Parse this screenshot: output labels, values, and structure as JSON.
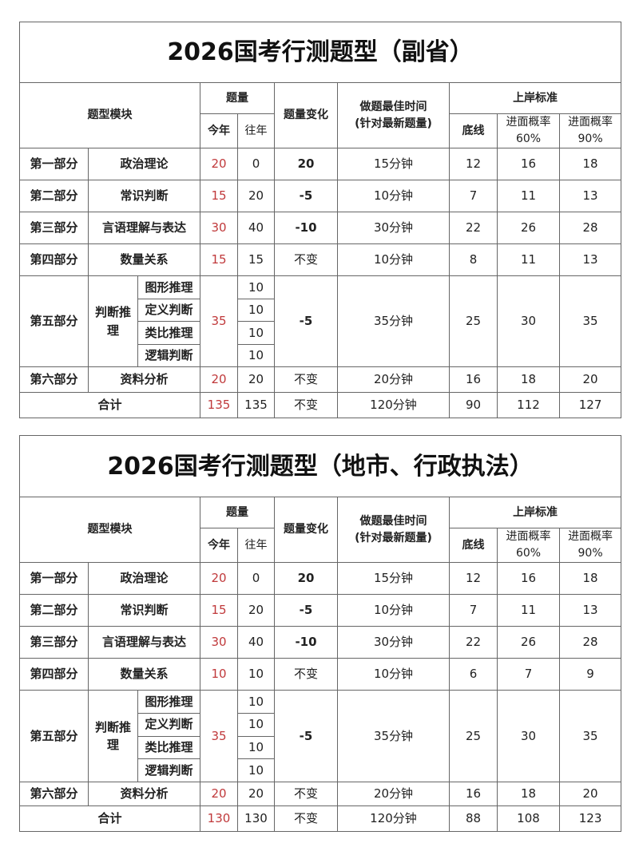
{
  "colors": {
    "highlight": "#c0393b",
    "border": "#666666"
  },
  "headers": {
    "module": "题型模块",
    "count": "题量",
    "this_year": "今年",
    "past_year": "往年",
    "change": "题量变化",
    "time_l1": "做题最佳时间",
    "time_l2": "(针对最新题量)",
    "standard": "上岸标准",
    "floor": "底线",
    "p60_l1": "进面概率",
    "p60_l2": "60%",
    "p90_l1": "进面概率",
    "p90_l2": "90%"
  },
  "tables": [
    {
      "title": "2026国考行测题型（副省）",
      "rows": [
        {
          "part": "第一部分",
          "name": "政治理论",
          "this_year": "20",
          "past_year": "0",
          "change": "20",
          "time": "15分钟",
          "floor": "12",
          "p60": "16",
          "p90": "18"
        },
        {
          "part": "第二部分",
          "name": "常识判断",
          "this_year": "15",
          "past_year": "20",
          "change": "-5",
          "time": "10分钟",
          "floor": "7",
          "p60": "11",
          "p90": "13"
        },
        {
          "part": "第三部分",
          "name": "言语理解与表达",
          "this_year": "30",
          "past_year": "40",
          "change": "-10",
          "time": "30分钟",
          "floor": "22",
          "p60": "26",
          "p90": "28"
        },
        {
          "part": "第四部分",
          "name": "数量关系",
          "this_year": "15",
          "past_year": "15",
          "change": "不变",
          "time": "10分钟",
          "floor": "8",
          "p60": "11",
          "p90": "13"
        }
      ],
      "fifth": {
        "part": "第五部分",
        "name": "判断推理",
        "subs": [
          {
            "name": "图形推理",
            "past_year": "10"
          },
          {
            "name": "定义判断",
            "past_year": "10"
          },
          {
            "name": "类比推理",
            "past_year": "10"
          },
          {
            "name": "逻辑判断",
            "past_year": "10"
          }
        ],
        "this_year": "35",
        "change": "-5",
        "time": "35分钟",
        "floor": "25",
        "p60": "30",
        "p90": "35"
      },
      "sixth": {
        "part": "第六部分",
        "name": "资料分析",
        "this_year": "20",
        "past_year": "20",
        "change": "不变",
        "time": "20分钟",
        "floor": "16",
        "p60": "18",
        "p90": "20"
      },
      "total": {
        "label": "合计",
        "this_year": "135",
        "past_year": "135",
        "change": "不变",
        "time": "120分钟",
        "floor": "90",
        "p60": "112",
        "p90": "127"
      }
    },
    {
      "title": "2026国考行测题型（地市、行政执法）",
      "rows": [
        {
          "part": "第一部分",
          "name": "政治理论",
          "this_year": "20",
          "past_year": "0",
          "change": "20",
          "time": "15分钟",
          "floor": "12",
          "p60": "16",
          "p90": "18"
        },
        {
          "part": "第二部分",
          "name": "常识判断",
          "this_year": "15",
          "past_year": "20",
          "change": "-5",
          "time": "10分钟",
          "floor": "7",
          "p60": "11",
          "p90": "13"
        },
        {
          "part": "第三部分",
          "name": "言语理解与表达",
          "this_year": "30",
          "past_year": "40",
          "change": "-10",
          "time": "30分钟",
          "floor": "22",
          "p60": "26",
          "p90": "28"
        },
        {
          "part": "第四部分",
          "name": "数量关系",
          "this_year": "10",
          "past_year": "10",
          "change": "不变",
          "time": "10分钟",
          "floor": "6",
          "p60": "7",
          "p90": "9"
        }
      ],
      "fifth": {
        "part": "第五部分",
        "name": "判断推理",
        "subs": [
          {
            "name": "图形推理",
            "past_year": "10"
          },
          {
            "name": "定义判断",
            "past_year": "10"
          },
          {
            "name": "类比推理",
            "past_year": "10"
          },
          {
            "name": "逻辑判断",
            "past_year": "10"
          }
        ],
        "this_year": "35",
        "change": "-5",
        "time": "35分钟",
        "floor": "25",
        "p60": "30",
        "p90": "35"
      },
      "sixth": {
        "part": "第六部分",
        "name": "资料分析",
        "this_year": "20",
        "past_year": "20",
        "change": "不变",
        "time": "20分钟",
        "floor": "16",
        "p60": "18",
        "p90": "20"
      },
      "total": {
        "label": "合计",
        "this_year": "130",
        "past_year": "130",
        "change": "不变",
        "time": "120分钟",
        "floor": "88",
        "p60": "108",
        "p90": "123"
      }
    }
  ]
}
